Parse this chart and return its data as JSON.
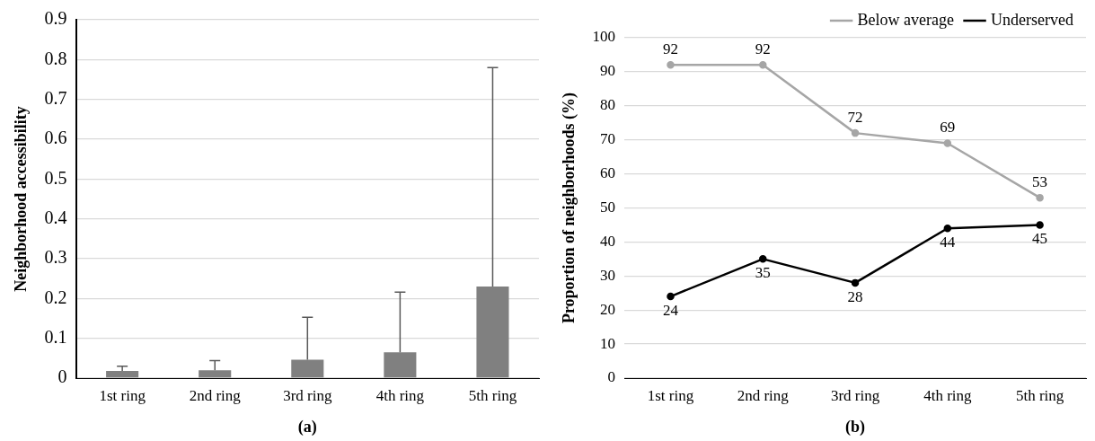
{
  "chart_data": [
    {
      "type": "bar",
      "xlabel": "(a)",
      "ylabel": "Neighborhood accessibility",
      "categories": [
        "1st ring",
        "2nd ring",
        "3rd ring",
        "4th ring",
        "5th ring"
      ],
      "values": [
        0.018,
        0.02,
        0.046,
        0.065,
        0.23
      ],
      "errors": [
        [
          0.018,
          0.03
        ],
        [
          0.02,
          0.044
        ],
        [
          0.046,
          0.153
        ],
        [
          0.065,
          0.216
        ],
        [
          0.23,
          0.78
        ]
      ],
      "color": "#808080",
      "ylim": [
        0,
        0.9
      ],
      "yticks": [
        0,
        0.1,
        0.2,
        0.3,
        0.4,
        0.5,
        0.6,
        0.7,
        0.8,
        0.9
      ],
      "grid": "y",
      "legend": false
    },
    {
      "type": "line",
      "xlabel": "(b)",
      "ylabel": "Proportion of neighborhoods (%)",
      "categories": [
        "1st ring",
        "2nd ring",
        "3rd ring",
        "4th ring",
        "5th ring"
      ],
      "series": [
        {
          "name": "Below average",
          "color": "#a6a6a6",
          "values": [
            92,
            92,
            72,
            69,
            53
          ]
        },
        {
          "name": "Underserved",
          "color": "#000000",
          "values": [
            24,
            35,
            28,
            44,
            45
          ]
        }
      ],
      "ylim": [
        0,
        100
      ],
      "yticks": [
        0,
        10,
        20,
        30,
        40,
        50,
        60,
        70,
        80,
        90,
        100
      ],
      "grid": "y",
      "legend": "top right",
      "marker": "circle",
      "line_style": "solid",
      "data_labels": true
    }
  ]
}
